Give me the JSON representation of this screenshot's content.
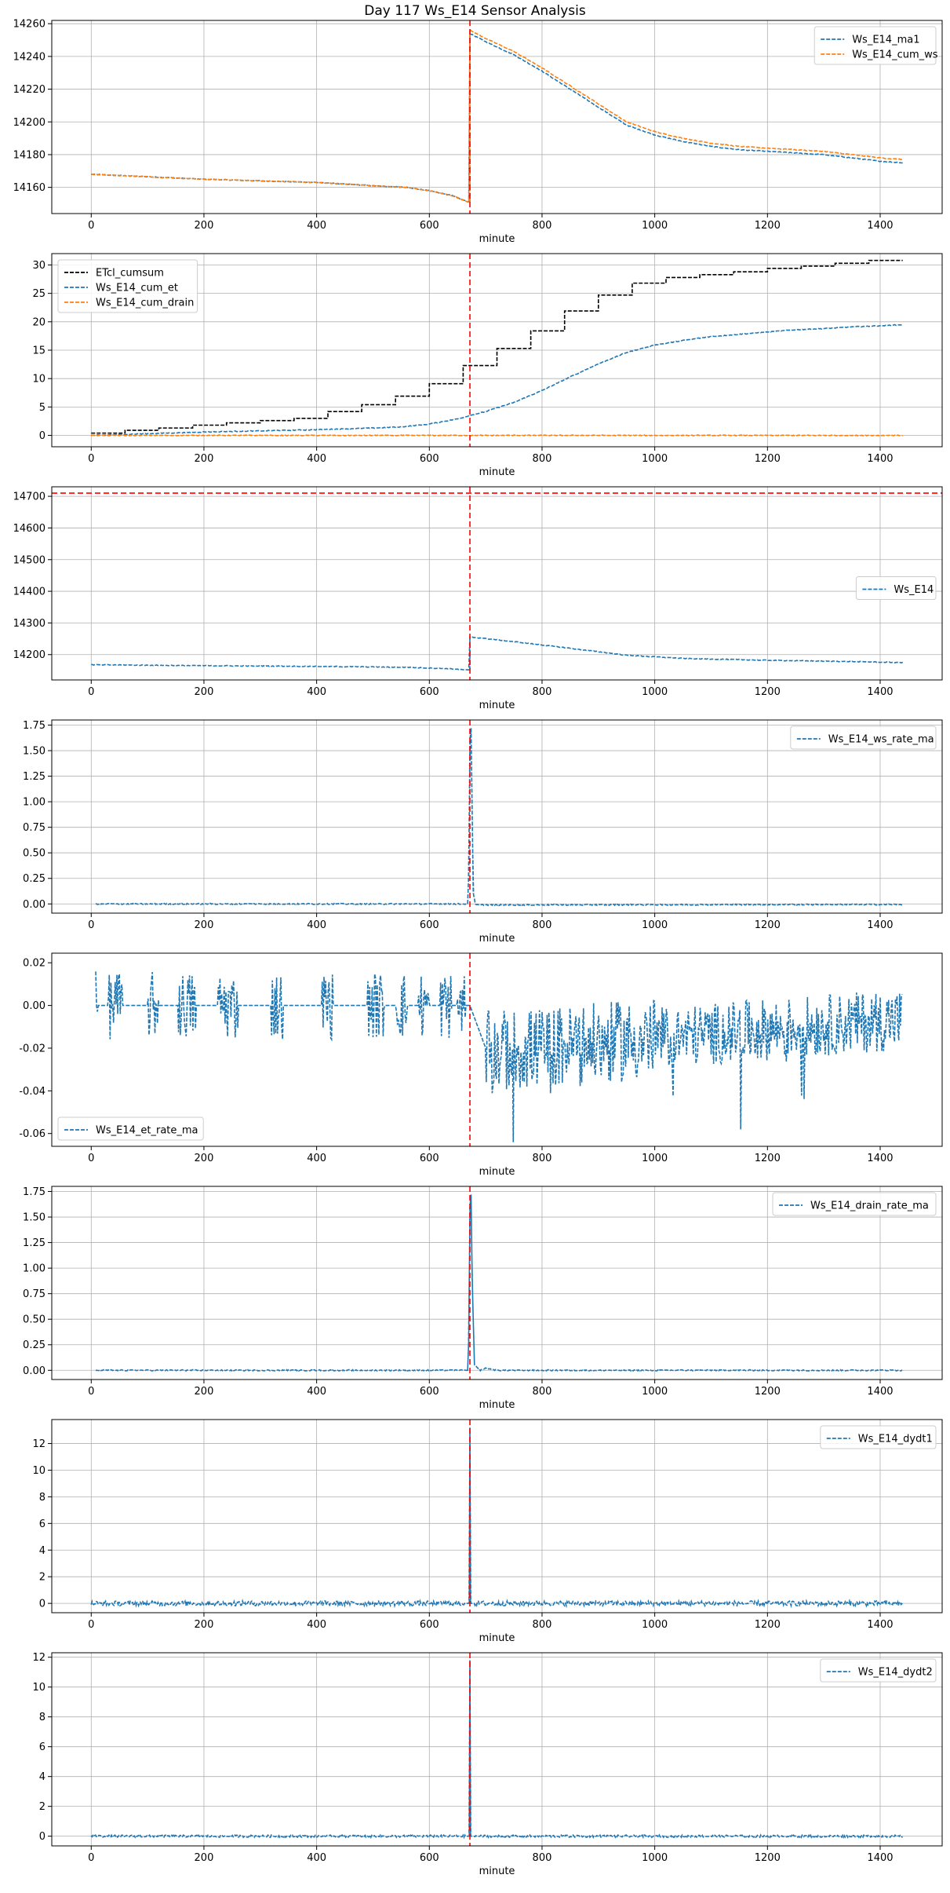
{
  "figure": {
    "title": "Day 117 Ws_E14 Sensor Analysis"
  },
  "chart_data": [
    {
      "type": "line",
      "xlabel": "minute",
      "ylabel": "",
      "xlim": [
        -70,
        1510
      ],
      "ylim": [
        14144,
        14262
      ],
      "xticks": [
        0,
        200,
        400,
        600,
        800,
        1000,
        1200,
        1400
      ],
      "yticks": [
        14160,
        14180,
        14200,
        14220,
        14240,
        14260
      ],
      "ytick_labels": [
        "14160",
        "14180",
        "14200",
        "14220",
        "14240",
        "14260"
      ],
      "grid": true,
      "legend_position": "top-right",
      "vline_x": 672,
      "hline_y": null,
      "series": [
        {
          "name": "Ws_E14_ma1",
          "color": "#1f77b4",
          "style": "dashed",
          "points": [
            [
              0,
              14168
            ],
            [
              100,
              14166.5
            ],
            [
              200,
              14165
            ],
            [
              300,
              14164
            ],
            [
              400,
              14163
            ],
            [
              500,
              14161
            ],
            [
              560,
              14160
            ],
            [
              600,
              14158
            ],
            [
              640,
              14155
            ],
            [
              670,
              14151
            ],
            [
              672,
              14254
            ],
            [
              700,
              14249
            ],
            [
              750,
              14241
            ],
            [
              800,
              14231
            ],
            [
              850,
              14220
            ],
            [
              900,
              14209
            ],
            [
              950,
              14198
            ],
            [
              1000,
              14192
            ],
            [
              1050,
              14188
            ],
            [
              1100,
              14185
            ],
            [
              1150,
              14183
            ],
            [
              1200,
              14182
            ],
            [
              1250,
              14181
            ],
            [
              1300,
              14180
            ],
            [
              1350,
              14178
            ],
            [
              1400,
              14176
            ],
            [
              1440,
              14175
            ]
          ]
        },
        {
          "name": "Ws_E14_cum_ws",
          "color": "#ff7f0e",
          "style": "dashed",
          "points": [
            [
              0,
              14168
            ],
            [
              100,
              14166.5
            ],
            [
              200,
              14165
            ],
            [
              300,
              14164
            ],
            [
              400,
              14163
            ],
            [
              500,
              14161
            ],
            [
              560,
              14160
            ],
            [
              600,
              14158
            ],
            [
              640,
              14155
            ],
            [
              670,
              14151
            ],
            [
              672,
              14256
            ],
            [
              700,
              14251
            ],
            [
              750,
              14243
            ],
            [
              800,
              14233
            ],
            [
              850,
              14222
            ],
            [
              900,
              14211
            ],
            [
              950,
              14200
            ],
            [
              1000,
              14194
            ],
            [
              1050,
              14190
            ],
            [
              1100,
              14187
            ],
            [
              1150,
              14185
            ],
            [
              1200,
              14184
            ],
            [
              1250,
              14183
            ],
            [
              1300,
              14182
            ],
            [
              1350,
              14180
            ],
            [
              1400,
              14178
            ],
            [
              1440,
              14177
            ]
          ]
        }
      ]
    },
    {
      "type": "line",
      "xlabel": "minute",
      "ylabel": "",
      "xlim": [
        -70,
        1510
      ],
      "ylim": [
        -2,
        32
      ],
      "xticks": [
        0,
        200,
        400,
        600,
        800,
        1000,
        1200,
        1400
      ],
      "yticks": [
        0,
        5,
        10,
        15,
        20,
        25,
        30
      ],
      "ytick_labels": [
        "0",
        "5",
        "10",
        "15",
        "20",
        "25",
        "30"
      ],
      "grid": true,
      "legend_position": "top-left",
      "vline_x": 672,
      "hline_y": null,
      "series": [
        {
          "name": "ETcl_cumsum",
          "color": "#000000",
          "style": "dashed",
          "step": true,
          "points": [
            [
              0,
              0.4
            ],
            [
              60,
              0.9
            ],
            [
              120,
              1.3
            ],
            [
              180,
              1.8
            ],
            [
              240,
              2.2
            ],
            [
              300,
              2.6
            ],
            [
              360,
              3.0
            ],
            [
              420,
              4.2
            ],
            [
              480,
              5.4
            ],
            [
              540,
              6.9
            ],
            [
              600,
              9.1
            ],
            [
              660,
              12.3
            ],
            [
              720,
              15.3
            ],
            [
              780,
              18.4
            ],
            [
              840,
              21.9
            ],
            [
              900,
              24.7
            ],
            [
              960,
              26.8
            ],
            [
              1020,
              27.8
            ],
            [
              1080,
              28.3
            ],
            [
              1140,
              28.8
            ],
            [
              1200,
              29.4
            ],
            [
              1260,
              29.8
            ],
            [
              1320,
              30.3
            ],
            [
              1380,
              30.8
            ],
            [
              1440,
              30.8
            ]
          ]
        },
        {
          "name": "Ws_E14_cum_et",
          "color": "#1f77b4",
          "style": "dashed",
          "points": [
            [
              0,
              0
            ],
            [
              100,
              0.3
            ],
            [
              200,
              0.6
            ],
            [
              300,
              0.8
            ],
            [
              400,
              1.0
            ],
            [
              500,
              1.3
            ],
            [
              550,
              1.5
            ],
            [
              600,
              2.0
            ],
            [
              650,
              2.9
            ],
            [
              672,
              3.5
            ],
            [
              700,
              4.2
            ],
            [
              750,
              5.8
            ],
            [
              800,
              7.9
            ],
            [
              850,
              10.3
            ],
            [
              900,
              12.6
            ],
            [
              950,
              14.6
            ],
            [
              1000,
              15.9
            ],
            [
              1050,
              16.7
            ],
            [
              1100,
              17.4
            ],
            [
              1150,
              17.8
            ],
            [
              1200,
              18.2
            ],
            [
              1250,
              18.6
            ],
            [
              1300,
              18.8
            ],
            [
              1350,
              19.1
            ],
            [
              1400,
              19.3
            ],
            [
              1440,
              19.5
            ]
          ]
        },
        {
          "name": "Ws_E14_cum_drain",
          "color": "#ff7f0e",
          "style": "dashed",
          "points": [
            [
              0,
              0
            ],
            [
              672,
              0
            ],
            [
              700,
              0
            ],
            [
              1440,
              0
            ]
          ]
        }
      ]
    },
    {
      "type": "line",
      "xlabel": "minute",
      "ylabel": "",
      "xlim": [
        -70,
        1510
      ],
      "ylim": [
        14120,
        14730
      ],
      "xticks": [
        0,
        200,
        400,
        600,
        800,
        1000,
        1200,
        1400
      ],
      "yticks": [
        14200,
        14300,
        14400,
        14500,
        14600,
        14700
      ],
      "ytick_labels": [
        "14200",
        "14300",
        "14400",
        "14500",
        "14600",
        "14700"
      ],
      "grid": true,
      "legend_position": "center-right",
      "vline_x": 672,
      "hline_y": 14710,
      "series": [
        {
          "name": "Ws_E14",
          "color": "#1f77b4",
          "style": "dashed",
          "points": [
            [
              0,
              14168
            ],
            [
              200,
              14165
            ],
            [
              400,
              14163
            ],
            [
              560,
              14160
            ],
            [
              640,
              14155
            ],
            [
              670,
              14151
            ],
            [
              672,
              14256
            ],
            [
              750,
              14241
            ],
            [
              850,
              14220
            ],
            [
              950,
              14198
            ],
            [
              1050,
              14188
            ],
            [
              1200,
              14182
            ],
            [
              1350,
              14178
            ],
            [
              1440,
              14175
            ]
          ]
        }
      ]
    },
    {
      "type": "line",
      "xlabel": "minute",
      "ylabel": "",
      "xlim": [
        -70,
        1510
      ],
      "ylim": [
        -0.09,
        1.8
      ],
      "xticks": [
        0,
        200,
        400,
        600,
        800,
        1000,
        1200,
        1400
      ],
      "yticks": [
        0,
        0.25,
        0.5,
        0.75,
        1.0,
        1.25,
        1.5,
        1.75
      ],
      "ytick_labels": [
        "0.00",
        "0.25",
        "0.50",
        "0.75",
        "1.00",
        "1.25",
        "1.50",
        "1.75"
      ],
      "grid": true,
      "legend_position": "top-right",
      "vline_x": 672,
      "hline_y": null,
      "series": [
        {
          "name": "Ws_E14_ws_rate_ma",
          "color": "#1f77b4",
          "style": "dashed",
          "points": [
            [
              8,
              0
            ],
            [
              668,
              0
            ],
            [
              670,
              0.3
            ],
            [
              672,
              1.6
            ],
            [
              674,
              1.72
            ],
            [
              676,
              0.9
            ],
            [
              678,
              0.1
            ],
            [
              682,
              -0.01
            ],
            [
              1440,
              -0.005
            ]
          ]
        }
      ]
    },
    {
      "type": "line",
      "xlabel": "minute",
      "ylabel": "",
      "xlim": [
        -70,
        1510
      ],
      "ylim": [
        -0.066,
        0.0245
      ],
      "xticks": [
        0,
        200,
        400,
        600,
        800,
        1000,
        1200,
        1400
      ],
      "yticks": [
        -0.06,
        -0.04,
        -0.02,
        0.0,
        0.02
      ],
      "ytick_labels": [
        "-0.06",
        "-0.04",
        "-0.02",
        "0.00",
        "0.02"
      ],
      "grid": false,
      "legend_position": "bottom-left",
      "vline_x": 672,
      "hline_y": null,
      "bursts": [
        [
          8,
          12
        ],
        [
          30,
          55
        ],
        [
          100,
          120
        ],
        [
          155,
          185
        ],
        [
          225,
          260
        ],
        [
          320,
          340
        ],
        [
          410,
          430
        ],
        [
          490,
          520
        ],
        [
          540,
          560
        ],
        [
          580,
          600
        ],
        [
          620,
          640
        ],
        [
          650,
          670
        ]
      ],
      "series": [
        {
          "name": "Ws_E14_et_rate_ma",
          "color": "#1f77b4",
          "style": "dashed",
          "points": [
            [
              8,
              0
            ],
            [
              668,
              0
            ],
            [
              672,
              0
            ],
            [
              700,
              -0.02
            ],
            [
              1440,
              -0.005
            ]
          ]
        }
      ]
    },
    {
      "type": "line",
      "xlabel": "minute",
      "ylabel": "",
      "xlim": [
        -70,
        1510
      ],
      "ylim": [
        -0.09,
        1.8
      ],
      "xticks": [
        0,
        200,
        400,
        600,
        800,
        1000,
        1200,
        1400
      ],
      "yticks": [
        0,
        0.25,
        0.5,
        0.75,
        1.0,
        1.25,
        1.5,
        1.75
      ],
      "ytick_labels": [
        "0.00",
        "0.25",
        "0.50",
        "0.75",
        "1.00",
        "1.25",
        "1.50",
        "1.75"
      ],
      "grid": true,
      "legend_position": "top-right",
      "vline_x": 672,
      "hline_y": null,
      "series": [
        {
          "name": "Ws_E14_drain_rate_ma",
          "color": "#1f77b4",
          "style": "dashed",
          "points": [
            [
              8,
              0
            ],
            [
              668,
              0
            ],
            [
              670,
              0.3
            ],
            [
              672,
              1.6
            ],
            [
              674,
              1.72
            ],
            [
              676,
              0.9
            ],
            [
              680,
              0.05
            ],
            [
              690,
              0.0
            ],
            [
              700,
              0.02
            ],
            [
              720,
              0
            ],
            [
              1440,
              0
            ]
          ]
        }
      ]
    },
    {
      "type": "line",
      "xlabel": "minute",
      "ylabel": "",
      "xlim": [
        -70,
        1510
      ],
      "ylim": [
        -0.7,
        13.8
      ],
      "xticks": [
        0,
        200,
        400,
        600,
        800,
        1000,
        1200,
        1400
      ],
      "yticks": [
        0,
        2,
        4,
        6,
        8,
        10,
        12
      ],
      "ytick_labels": [
        "0",
        "2",
        "4",
        "6",
        "8",
        "10",
        "12"
      ],
      "grid": true,
      "legend_position": "top-right",
      "vline_x": 672,
      "hline_y": null,
      "series": [
        {
          "name": "Ws_E14_dydt1",
          "color": "#1f77b4",
          "style": "dashed",
          "points": [
            [
              0,
              0
            ],
            [
              671,
              0
            ],
            [
              672,
              13.2
            ],
            [
              673,
              0
            ],
            [
              1440,
              0
            ]
          ]
        }
      ]
    },
    {
      "type": "line",
      "xlabel": "minute",
      "ylabel": "",
      "xlim": [
        -70,
        1510
      ],
      "ylim": [
        -0.65,
        12.3
      ],
      "xticks": [
        0,
        200,
        400,
        600,
        800,
        1000,
        1200,
        1400
      ],
      "yticks": [
        0,
        2,
        4,
        6,
        8,
        10,
        12
      ],
      "ytick_labels": [
        "0",
        "2",
        "4",
        "6",
        "8",
        "10",
        "12"
      ],
      "grid": true,
      "legend_position": "top-right",
      "vline_x": 672,
      "hline_y": null,
      "series": [
        {
          "name": "Ws_E14_dydt2",
          "color": "#1f77b4",
          "style": "dashed",
          "points": [
            [
              0,
              0
            ],
            [
              671,
              0
            ],
            [
              672,
              11.8
            ],
            [
              673,
              0
            ],
            [
              1440,
              0
            ]
          ]
        }
      ]
    }
  ]
}
